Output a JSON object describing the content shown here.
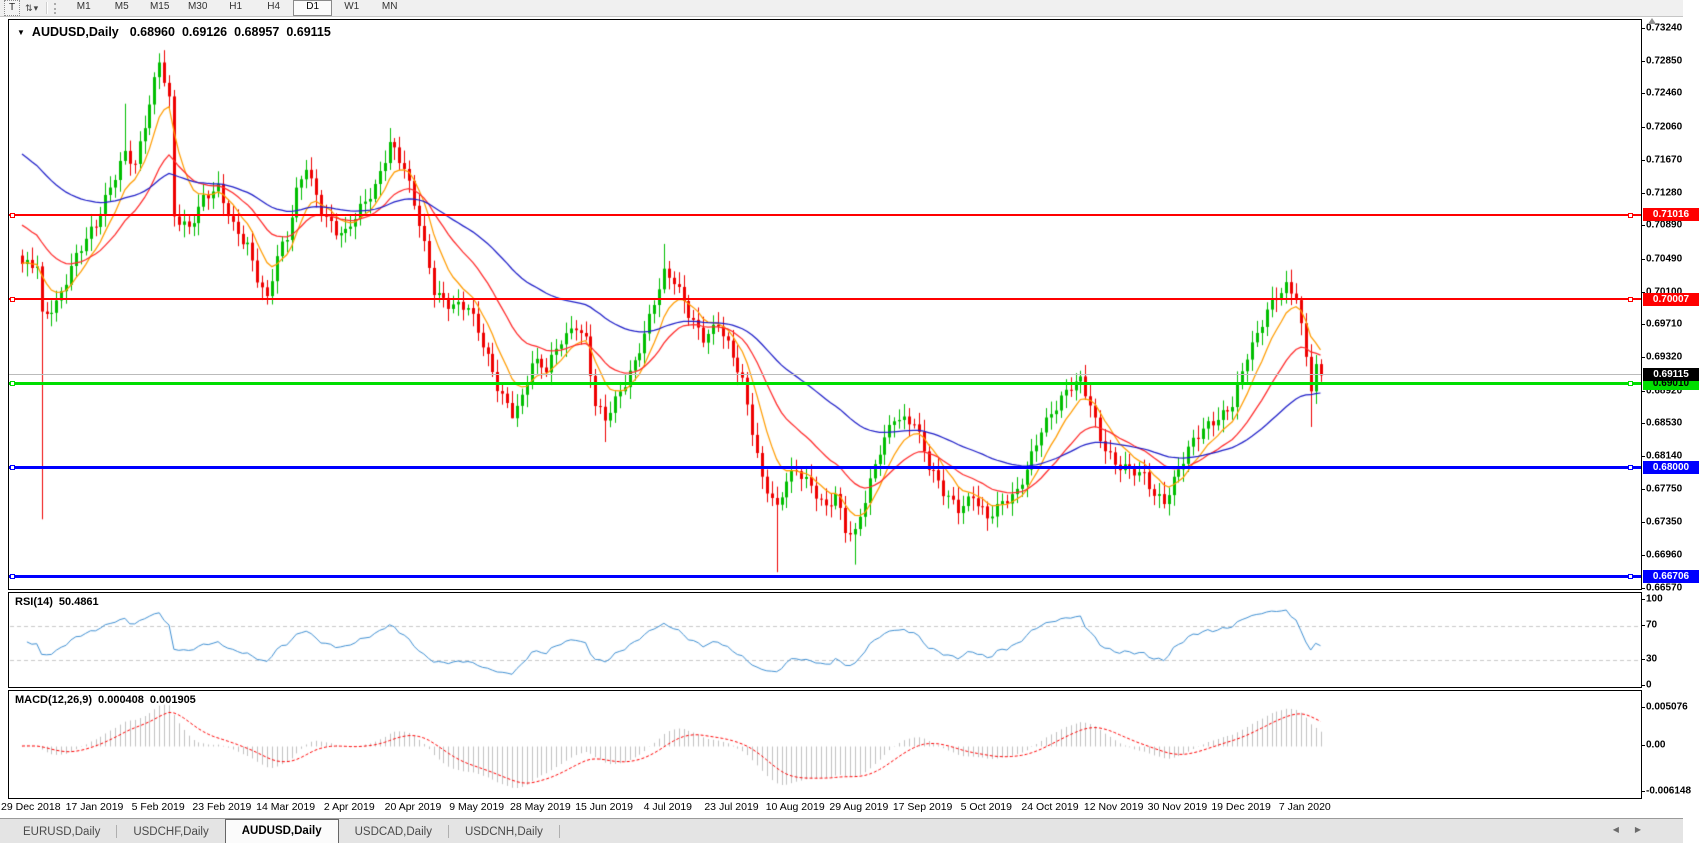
{
  "toolbar": {
    "t_button_label": "T",
    "objects_icon_glyph": "⇅",
    "dropdown_caret": "▾",
    "timeframes": [
      "M1",
      "M5",
      "M15",
      "M30",
      "H1",
      "H4",
      "D1",
      "W1",
      "MN"
    ],
    "active_timeframe": "D1"
  },
  "chart": {
    "title": {
      "dropdown_marker": "▼",
      "symbol_period": "AUDUSD,Daily",
      "open": "0.68960",
      "high": "0.69126",
      "low": "0.68957",
      "close": "0.69115"
    }
  },
  "chart_data": {
    "type": "candlestick",
    "symbol": "AUDUSD",
    "timeframe": "Daily",
    "last_bar_ohlc": {
      "open": 0.6896,
      "high": 0.69126,
      "low": 0.68957,
      "close": 0.69115
    },
    "price_axis": {
      "view_min": 0.66546,
      "view_max": 0.73347,
      "ticks": [
        "0.73240",
        "0.72850",
        "0.72460",
        "0.72060",
        "0.71670",
        "0.71280",
        "0.70890",
        "0.70490",
        "0.70100",
        "0.69710",
        "0.69320",
        "0.68920",
        "0.68530",
        "0.68140",
        "0.67750",
        "0.67350",
        "0.66960",
        "0.66570"
      ]
    },
    "date_axis": [
      "29 Dec 2018",
      "17 Jan 2019",
      "5 Feb 2019",
      "23 Feb 2019",
      "14 Mar 2019",
      "2 Apr 2019",
      "20 Apr 2019",
      "9 May 2019",
      "28 May 2019",
      "15 Jun 2019",
      "4 Jul 2019",
      "23 Jul 2019",
      "10 Aug 2019",
      "29 Aug 2019",
      "17 Sep 2019",
      "5 Oct 2019",
      "24 Oct 2019",
      "12 Nov 2019",
      "30 Nov 2019",
      "19 Dec 2019",
      "7 Jan 2020"
    ],
    "horizontal_lines": [
      {
        "price": 0.71016,
        "label": "0.71016",
        "color": "#FF0000",
        "text_color": "#FFFFFF",
        "thickness": 2
      },
      {
        "price": 0.70007,
        "label": "0.70007",
        "color": "#FF0000",
        "text_color": "#FFFFFF",
        "thickness": 2
      },
      {
        "price": 0.6901,
        "label": "0.69010",
        "color": "#00DE00",
        "text_color": "#000000",
        "thickness": 3
      },
      {
        "price": 0.68,
        "label": "0.68000",
        "color": "#0000FF",
        "text_color": "#FFFFFF",
        "thickness": 3
      },
      {
        "price": 0.66706,
        "label": "0.66706",
        "color": "#0000FF",
        "text_color": "#FFFFFF",
        "thickness": 3
      }
    ],
    "current_price": {
      "price": 0.69115,
      "label": "0.69115",
      "line_color": "#BBBBBB",
      "badge_bg": "#000000",
      "text_color": "#FFFFFF"
    },
    "candles": {
      "count": 266,
      "up_color": "#00BE00",
      "down_color": "#EE0000",
      "close_anchors": [
        [
          0,
          0.704
        ],
        [
          2,
          0.7042
        ],
        [
          3,
          0.7045
        ],
        [
          4,
          0.6985
        ],
        [
          7,
          0.7
        ],
        [
          11,
          0.705
        ],
        [
          15,
          0.709
        ],
        [
          18,
          0.714
        ],
        [
          21,
          0.718
        ],
        [
          23,
          0.716
        ],
        [
          26,
          0.723
        ],
        [
          28,
          0.7285
        ],
        [
          30,
          0.724
        ],
        [
          31,
          0.7105
        ],
        [
          34,
          0.709
        ],
        [
          37,
          0.712
        ],
        [
          40,
          0.713
        ],
        [
          43,
          0.709
        ],
        [
          46,
          0.707
        ],
        [
          48,
          0.703
        ],
        [
          50,
          0.7
        ],
        [
          52,
          0.705
        ],
        [
          54,
          0.7072
        ],
        [
          56,
          0.713
        ],
        [
          58,
          0.7165
        ],
        [
          61,
          0.711
        ],
        [
          64,
          0.708
        ],
        [
          66,
          0.7076
        ],
        [
          69,
          0.711
        ],
        [
          72,
          0.714
        ],
        [
          75,
          0.719
        ],
        [
          78,
          0.7155
        ],
        [
          81,
          0.709
        ],
        [
          84,
          0.7015
        ],
        [
          87,
          0.7
        ],
        [
          89,
          0.6995
        ],
        [
          91,
          0.699
        ],
        [
          94,
          0.6945
        ],
        [
          97,
          0.69
        ],
        [
          100,
          0.687
        ],
        [
          102,
          0.6885
        ],
        [
          104,
          0.6925
        ],
        [
          107,
          0.6915
        ],
        [
          110,
          0.6955
        ],
        [
          113,
          0.6975
        ],
        [
          115,
          0.6955
        ],
        [
          117,
          0.6875
        ],
        [
          119,
          0.6855
        ],
        [
          122,
          0.689
        ],
        [
          125,
          0.693
        ],
        [
          127,
          0.6965
        ],
        [
          129,
          0.7
        ],
        [
          131,
          0.703
        ],
        [
          133,
          0.702
        ],
        [
          136,
          0.6985
        ],
        [
          139,
          0.696
        ],
        [
          142,
          0.6975
        ],
        [
          145,
          0.693
        ],
        [
          147,
          0.69
        ],
        [
          149,
          0.6845
        ],
        [
          151,
          0.679
        ],
        [
          153,
          0.677
        ],
        [
          154,
          0.6756
        ],
        [
          156,
          0.6788
        ],
        [
          158,
          0.6795
        ],
        [
          161,
          0.6775
        ],
        [
          164,
          0.6755
        ],
        [
          166,
          0.6775
        ],
        [
          168,
          0.673
        ],
        [
          170,
          0.6722
        ],
        [
          172,
          0.676
        ],
        [
          175,
          0.682
        ],
        [
          178,
          0.6865
        ],
        [
          182,
          0.6858
        ],
        [
          185,
          0.68
        ],
        [
          188,
          0.677
        ],
        [
          191,
          0.6755
        ],
        [
          194,
          0.6772
        ],
        [
          197,
          0.674
        ],
        [
          200,
          0.6755
        ],
        [
          203,
          0.6772
        ],
        [
          206,
          0.682
        ],
        [
          208,
          0.685
        ],
        [
          211,
          0.6872
        ],
        [
          214,
          0.6895
        ],
        [
          216,
          0.6905
        ],
        [
          218,
          0.688
        ],
        [
          220,
          0.684
        ],
        [
          223,
          0.6805
        ],
        [
          226,
          0.6795
        ],
        [
          229,
          0.679
        ],
        [
          231,
          0.6772
        ],
        [
          233,
          0.6765
        ],
        [
          236,
          0.68
        ],
        [
          239,
          0.683
        ],
        [
          242,
          0.685
        ],
        [
          245,
          0.6868
        ],
        [
          247,
          0.6882
        ],
        [
          250,
          0.6935
        ],
        [
          252,
          0.6955
        ],
        [
          254,
          0.6985
        ],
        [
          256,
          0.7005
        ],
        [
          258,
          0.702
        ],
        [
          260,
          0.701
        ],
        [
          262,
          0.6935
        ],
        [
          263,
          0.6898
        ],
        [
          264,
          0.692
        ],
        [
          265,
          0.69115
        ]
      ],
      "wick_overrides": [
        [
          4,
          "low",
          0.674
        ],
        [
          21,
          "high",
          0.7235
        ],
        [
          28,
          "high",
          0.7295
        ],
        [
          58,
          "high",
          0.7168
        ],
        [
          75,
          "high",
          0.7206
        ],
        [
          100,
          "low",
          0.6862
        ],
        [
          119,
          "low",
          0.6832
        ],
        [
          131,
          "high",
          0.7068
        ],
        [
          154,
          "low",
          0.6677
        ],
        [
          170,
          "low",
          0.6686
        ],
        [
          258,
          "high",
          0.7036
        ],
        [
          263,
          "low",
          0.685
        ]
      ]
    },
    "moving_averages": [
      {
        "period": 8,
        "color": "#FF9C00",
        "seed": 0.7045
      },
      {
        "period": 21,
        "color": "#FF2A2A",
        "seed": 0.7095
      },
      {
        "period": 55,
        "color": "#1E1EC8",
        "seed": 0.718
      }
    ],
    "rsi": {
      "label": "RSI(14)",
      "period": 14,
      "current_value": "50.4861",
      "line_color": "#3F8FD2",
      "levels": [
        {
          "value": 100,
          "label": "100"
        },
        {
          "value": 70,
          "label": "70"
        },
        {
          "value": 30,
          "label": "30"
        },
        {
          "value": 0,
          "label": "0"
        }
      ],
      "dashed_levels": [
        70,
        30
      ]
    },
    "macd": {
      "label": "MACD(12,26,9)",
      "fast": 12,
      "slow": 26,
      "signal": 9,
      "macd_value": "0.000408",
      "signal_value": "0.001905",
      "histogram_color": "#C0C0C0",
      "signal_color": "#FF0000",
      "axis": [
        {
          "value": 0.005076,
          "label": "0.005076"
        },
        {
          "value": 0,
          "label": "0.00"
        },
        {
          "value": -0.006148,
          "label": "-0.006148"
        }
      ]
    }
  },
  "tabs": {
    "items": [
      {
        "label": "EURUSD,Daily",
        "active": false
      },
      {
        "label": "USDCHF,Daily",
        "active": false
      },
      {
        "label": "AUDUSD,Daily",
        "active": true
      },
      {
        "label": "USDCAD,Daily",
        "active": false
      },
      {
        "label": "USDCNH,Daily",
        "active": false
      }
    ],
    "scroll_left": "◀",
    "scroll_right": "▶"
  }
}
